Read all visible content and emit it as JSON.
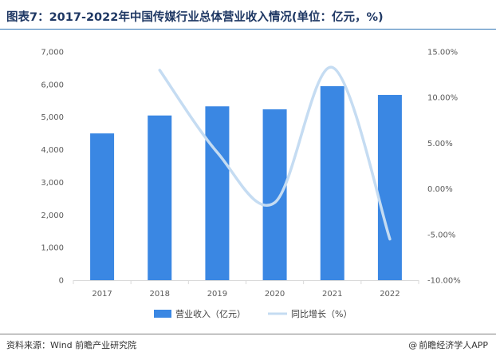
{
  "title": "图表7：2017-2022年中国传媒行业总体营业收入情况(单位：亿元，%)",
  "footer": {
    "source": "资料来源：Wind 前瞻产业研究院",
    "brand_at": "@",
    "brand": "前瞻经济学人APP"
  },
  "colors": {
    "bar": "#3a87e3",
    "line": "#c5dcf2",
    "title": "#1f3864"
  },
  "chart_data": {
    "type": "bar",
    "categories": [
      "2017",
      "2018",
      "2019",
      "2020",
      "2021",
      "2022"
    ],
    "series": [
      {
        "name": "营业收入（亿元）",
        "type": "bar",
        "axis": "left",
        "values": [
          4500,
          5050,
          5330,
          5240,
          5950,
          5680
        ]
      },
      {
        "name": "同比增长（%）",
        "type": "line",
        "smooth": true,
        "axis": "right",
        "values": [
          null,
          13.0,
          4.0,
          -1.5,
          13.3,
          -5.5
        ]
      }
    ],
    "y_left": {
      "ylim": [
        0,
        7000
      ],
      "ticks": [
        0,
        1000,
        2000,
        3000,
        4000,
        5000,
        6000,
        7000
      ],
      "tick_labels": [
        "0",
        "1,000",
        "2,000",
        "3,000",
        "4,000",
        "5,000",
        "6,000",
        "7,000"
      ]
    },
    "y_right": {
      "ylim": [
        -10,
        15
      ],
      "ticks": [
        -10,
        -5,
        0,
        5,
        10,
        15
      ],
      "tick_labels": [
        "-10.00%",
        "-5.00%",
        "0.00%",
        "5.00%",
        "10.00%",
        "15.00%"
      ]
    },
    "grid": false,
    "legend": "bottom"
  }
}
